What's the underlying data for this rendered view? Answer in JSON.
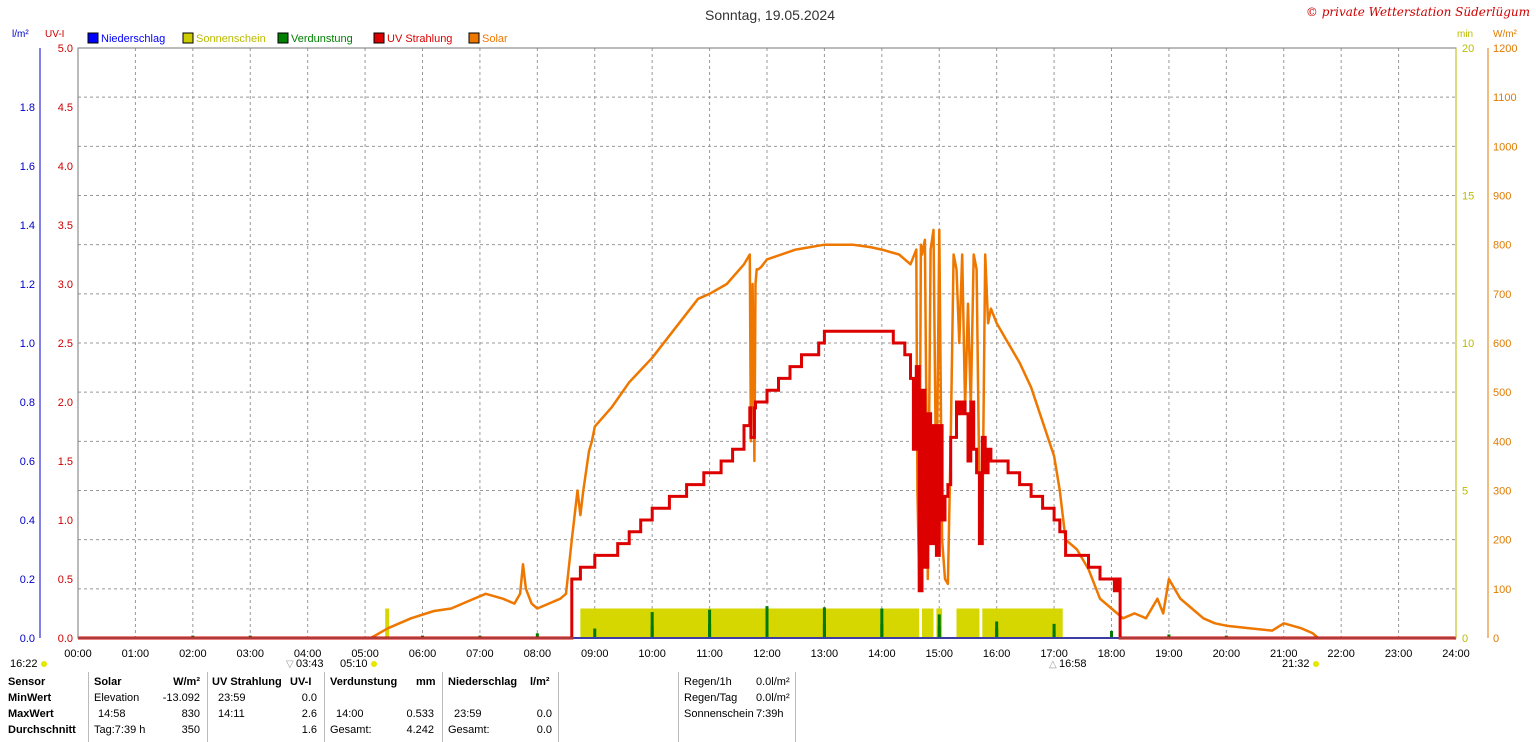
{
  "header": {
    "title": "Sonntag, 19.05.2024",
    "copyright": "© private Wetterstation Süderlügum"
  },
  "axes": {
    "left_unit": "l/m²",
    "uv_unit": "UV-I",
    "min_unit": "min",
    "solar_unit": "W/m²",
    "rain_ticks": [
      "0.0",
      "0.2",
      "0.4",
      "0.6",
      "0.8",
      "1.0",
      "1.2",
      "1.4",
      "1.6",
      "1.8"
    ],
    "uv_ticks": [
      "0.0",
      "0.5",
      "1.0",
      "1.5",
      "2.0",
      "2.5",
      "3.0",
      "3.5",
      "4.0",
      "4.5",
      "5.0"
    ],
    "min_ticks": [
      "0",
      "5",
      "10",
      "15",
      "20"
    ],
    "solar_ticks": [
      "0",
      "100",
      "200",
      "300",
      "400",
      "500",
      "600",
      "700",
      "800",
      "900",
      "1000",
      "1100",
      "1200"
    ],
    "x_ticks": [
      "00:00",
      "01:00",
      "02:00",
      "03:00",
      "04:00",
      "05:00",
      "06:00",
      "07:00",
      "08:00",
      "09:00",
      "10:00",
      "11:00",
      "12:00",
      "13:00",
      "14:00",
      "15:00",
      "16:00",
      "17:00",
      "18:00",
      "19:00",
      "20:00",
      "21:00",
      "22:00",
      "23:00",
      "24:00"
    ],
    "colors": {
      "rain": "#0000cc",
      "uv": "#cc0000",
      "min": "#cccc00",
      "solar": "#e07b00"
    }
  },
  "markers": {
    "left_time": "16:22",
    "moonset": "03:43",
    "sunrise": "05:10",
    "moonrise": "16:58",
    "sunset": "21:32"
  },
  "chart_data": {
    "type": "line",
    "x_unit": "hours",
    "xlim": [
      0,
      24
    ],
    "legend": [
      "Niederschlag",
      "Sonnenschein",
      "Verdunstung",
      "UV Strahlung",
      "Solar"
    ],
    "legend_colors": [
      "#0000ff",
      "#cccc00",
      "#008000",
      "#dd0000",
      "#ee7700"
    ],
    "series": [
      {
        "name": "Solar",
        "unit": "W/m²",
        "ylim": [
          0,
          1200
        ],
        "x": [
          0,
          5.1,
          5.4,
          5.8,
          6.2,
          6.5,
          6.8,
          7.1,
          7.4,
          7.6,
          7.7,
          7.75,
          7.8,
          7.9,
          8.0,
          8.2,
          8.4,
          8.5,
          8.6,
          8.7,
          8.75,
          8.8,
          8.9,
          8.95,
          9.0,
          9.3,
          9.6,
          10.0,
          10.4,
          10.8,
          11.0,
          11.3,
          11.6,
          11.7,
          11.72,
          11.75,
          11.78,
          11.8,
          11.82,
          11.85,
          11.9,
          12.0,
          12.5,
          13.0,
          13.5,
          13.8,
          14.0,
          14.3,
          14.5,
          14.6,
          14.62,
          14.65,
          14.68,
          14.7,
          14.75,
          14.8,
          14.85,
          14.9,
          14.95,
          15.0,
          15.05,
          15.1,
          15.15,
          15.2,
          15.25,
          15.3,
          15.35,
          15.4,
          15.45,
          15.5,
          15.55,
          15.6,
          15.65,
          15.7,
          15.75,
          15.8,
          15.85,
          15.9,
          16.0,
          16.2,
          16.4,
          16.6,
          16.8,
          17.0,
          17.1,
          17.2,
          17.4,
          17.6,
          17.8,
          18.0,
          18.2,
          18.4,
          18.6,
          18.8,
          18.9,
          19.0,
          19.2,
          19.4,
          19.6,
          19.8,
          20.0,
          20.4,
          20.8,
          21.0,
          21.3,
          21.5,
          21.6,
          24.0
        ],
        "values": [
          0,
          0,
          20,
          40,
          55,
          60,
          75,
          90,
          80,
          70,
          90,
          150,
          100,
          70,
          60,
          70,
          80,
          90,
          200,
          300,
          250,
          300,
          380,
          400,
          430,
          470,
          520,
          570,
          630,
          690,
          700,
          720,
          760,
          780,
          400,
          720,
          360,
          720,
          750,
          750,
          755,
          770,
          790,
          800,
          800,
          795,
          790,
          780,
          760,
          790,
          300,
          120,
          800,
          780,
          810,
          120,
          790,
          830,
          250,
          830,
          200,
          120,
          110,
          400,
          780,
          750,
          600,
          780,
          470,
          680,
          470,
          780,
          750,
          300,
          210,
          780,
          640,
          670,
          640,
          600,
          560,
          510,
          440,
          370,
          300,
          200,
          180,
          140,
          80,
          60,
          40,
          50,
          40,
          80,
          50,
          120,
          80,
          60,
          40,
          30,
          25,
          20,
          15,
          30,
          20,
          10,
          0,
          0
        ]
      },
      {
        "name": "UV Strahlung",
        "unit": "UV-I",
        "ylim": [
          0,
          5
        ],
        "x": [
          0,
          8.55,
          8.6,
          8.75,
          9.0,
          9.4,
          9.6,
          9.8,
          10.0,
          10.3,
          10.6,
          10.9,
          11.2,
          11.4,
          11.6,
          11.7,
          11.72,
          11.75,
          11.78,
          11.8,
          12.0,
          12.2,
          12.4,
          12.6,
          12.9,
          13.0,
          14.0,
          14.2,
          14.4,
          14.5,
          14.55,
          14.6,
          14.65,
          14.7,
          14.75,
          14.8,
          14.85,
          14.9,
          14.95,
          15.0,
          15.05,
          15.1,
          15.15,
          15.2,
          15.3,
          15.35,
          15.4,
          15.45,
          15.5,
          15.55,
          15.6,
          15.65,
          15.7,
          15.75,
          15.8,
          15.85,
          15.9,
          16.0,
          16.2,
          16.4,
          16.6,
          16.8,
          17.0,
          17.1,
          17.2,
          17.4,
          17.6,
          17.8,
          17.9,
          18.0,
          18.05,
          18.1,
          18.15,
          24.0
        ],
        "values": [
          0,
          0,
          0.5,
          0.6,
          0.7,
          0.8,
          0.9,
          1.0,
          1.1,
          1.2,
          1.3,
          1.4,
          1.5,
          1.6,
          1.8,
          1.95,
          1.7,
          1.7,
          1.95,
          2.0,
          2.1,
          2.2,
          2.3,
          2.4,
          2.5,
          2.6,
          2.6,
          2.5,
          2.4,
          2.2,
          1.6,
          2.3,
          0.4,
          2.1,
          0.6,
          1.9,
          0.8,
          1.8,
          0.7,
          1.8,
          1.0,
          1.2,
          1.3,
          1.7,
          2.0,
          1.9,
          2.0,
          1.9,
          1.5,
          2.0,
          1.6,
          1.4,
          0.8,
          1.7,
          1.4,
          1.6,
          1.5,
          1.5,
          1.4,
          1.3,
          1.2,
          1.1,
          1.0,
          0.9,
          0.7,
          0.7,
          0.6,
          0.5,
          0.5,
          0.5,
          0.4,
          0.5,
          0.0,
          0.0
        ]
      },
      {
        "name": "Sonnenschein",
        "unit": "min",
        "ylim": [
          0,
          20
        ],
        "blocks": [
          [
            5.35,
            5.42,
            1.0
          ],
          [
            8.75,
            14.65,
            1.0
          ],
          [
            14.7,
            14.9,
            1.0
          ],
          [
            14.95,
            15.05,
            1.0
          ],
          [
            15.3,
            15.7,
            1.0
          ],
          [
            15.75,
            17.15,
            1.0
          ]
        ]
      },
      {
        "name": "Verdunstung",
        "unit": "mm",
        "ylim": [
          0,
          5
        ],
        "spikes": [
          [
            2.0,
            0.02
          ],
          [
            3.0,
            0.02
          ],
          [
            6.0,
            0.02
          ],
          [
            7.0,
            0.02
          ],
          [
            8.0,
            0.04
          ],
          [
            9.0,
            0.08
          ],
          [
            10.0,
            0.22
          ],
          [
            10.0,
            0.1
          ],
          [
            11.0,
            0.24
          ],
          [
            11.0,
            0.12
          ],
          [
            12.0,
            0.27
          ],
          [
            12.0,
            0.14
          ],
          [
            13.0,
            0.26
          ],
          [
            13.0,
            0.12
          ],
          [
            14.0,
            0.25
          ],
          [
            14.0,
            0.12
          ],
          [
            15.0,
            0.2
          ],
          [
            15.0,
            0.1
          ],
          [
            16.0,
            0.14
          ],
          [
            16.0,
            0.08
          ],
          [
            17.0,
            0.12
          ],
          [
            17.0,
            0.06
          ],
          [
            18.0,
            0.06
          ],
          [
            19.0,
            0.03
          ],
          [
            20.0,
            0.02
          ],
          [
            21.0,
            0.01
          ]
        ]
      },
      {
        "name": "Niederschlag",
        "unit": "l/m²",
        "ylim": [
          0,
          2
        ],
        "x": [
          0,
          24
        ],
        "values": [
          0,
          0
        ]
      }
    ]
  },
  "stats": {
    "sensor_header": "Sensor",
    "row_labels": [
      "MinWert",
      "MaxWert",
      "Durchschnitt"
    ],
    "solar": {
      "title": "Solar",
      "unit": "W/m²",
      "rows": [
        [
          "Elevation",
          "-13.092"
        ],
        [
          "14:58",
          "830"
        ],
        [
          "Tag:7:39 h",
          "350"
        ]
      ]
    },
    "uv": {
      "title": "UV Strahlung",
      "unit": "UV-I",
      "rows": [
        [
          "23:59",
          "0.0"
        ],
        [
          "14:11",
          "2.6"
        ],
        [
          "",
          "1.6"
        ]
      ]
    },
    "evap": {
      "title": "Verdunstung",
      "unit": "mm",
      "rows": [
        [
          "",
          ""
        ],
        [
          "14:00",
          "0.533"
        ],
        [
          "Gesamt:",
          "4.242"
        ]
      ]
    },
    "rain": {
      "title": "Niederschlag",
      "unit": "l/m²",
      "rows": [
        [
          "",
          ""
        ],
        [
          "23:59",
          "0.0"
        ],
        [
          "Gesamt:",
          "0.0"
        ]
      ]
    },
    "summary": [
      [
        "Regen/1h",
        "0.0l/m²"
      ],
      [
        "Regen/Tag",
        "0.0l/m²"
      ],
      [
        "Sonnenschein",
        "7:39h"
      ]
    ]
  }
}
